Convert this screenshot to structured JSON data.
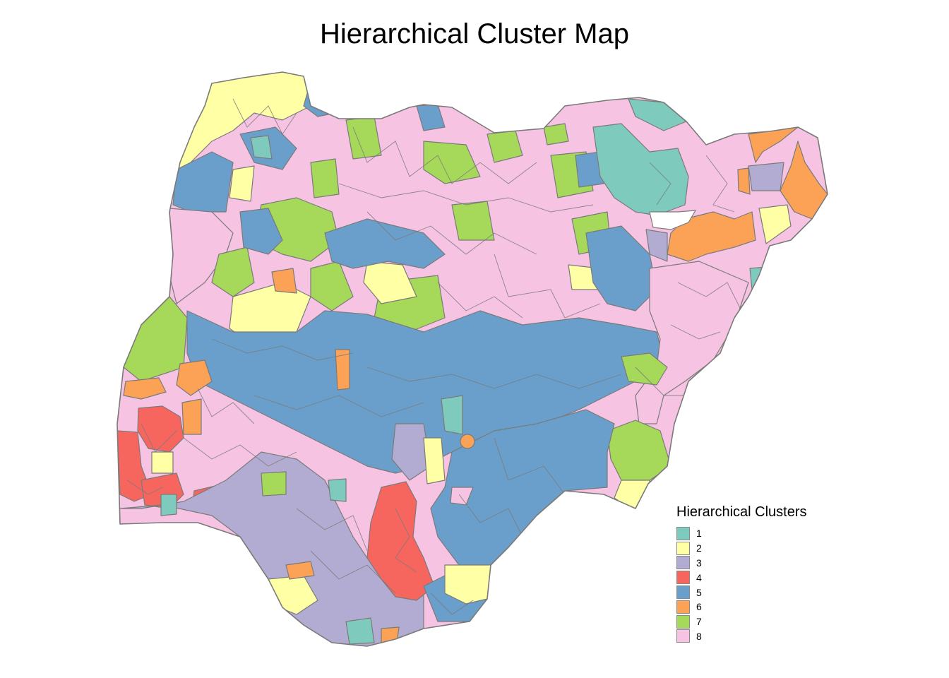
{
  "title": "Hierarchical Cluster Map",
  "legend": {
    "title": "Hierarchical Clusters",
    "items": [
      {
        "label": "1",
        "color": "#7ecbbd"
      },
      {
        "label": "2",
        "color": "#ffffa6"
      },
      {
        "label": "3",
        "color": "#b3acd2"
      },
      {
        "label": "4",
        "color": "#f6665f"
      },
      {
        "label": "5",
        "color": "#6a9fcb"
      },
      {
        "label": "6",
        "color": "#fba257"
      },
      {
        "label": "7",
        "color": "#a6d95a"
      },
      {
        "label": "8",
        "color": "#f7c3e3"
      }
    ]
  },
  "map": {
    "border_color": "#7a7a7a",
    "region_description": "Nigeria local government areas colored by hierarchical cluster"
  }
}
